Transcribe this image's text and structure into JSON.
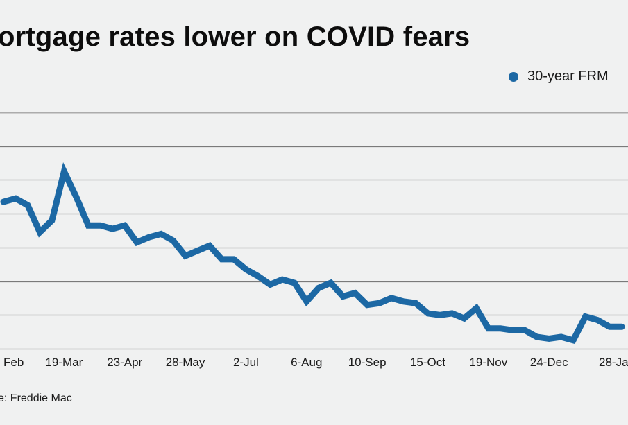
{
  "title": "ortgage rates lower on COVID fears",
  "source": "e: Freddie Mac",
  "colors": {
    "series": "#1c68a4",
    "grid": "#7a7a7a",
    "background": "#f0f1f1"
  },
  "chart_data": {
    "type": "line",
    "title": "ortgage rates lower on COVID fears",
    "xlabel": "",
    "ylabel": "",
    "ylim": [
      2.6,
      4.0
    ],
    "grid": true,
    "legend_position": "top-right",
    "yticks": [
      2.6,
      2.8,
      3.0,
      3.2,
      3.4,
      3.6,
      3.8,
      4.0
    ],
    "xtick_labels": [
      "Feb",
      "19-Mar",
      "23-Apr",
      "28-May",
      "2-Jul",
      "6-Aug",
      "10-Sep",
      "15-Oct",
      "19-Nov",
      "24-Dec",
      "28-Ja"
    ],
    "xtick_indices": [
      0,
      5,
      10,
      15,
      20,
      25,
      30,
      35,
      40,
      45,
      50
    ],
    "x": [
      "13-Feb",
      "20-Feb",
      "27-Feb",
      "5-Mar",
      "12-Mar",
      "19-Mar",
      "26-Mar",
      "2-Apr",
      "9-Apr",
      "16-Apr",
      "23-Apr",
      "30-Apr",
      "7-May",
      "14-May",
      "21-May",
      "28-May",
      "4-Jun",
      "11-Jun",
      "18-Jun",
      "25-Jun",
      "2-Jul",
      "9-Jul",
      "16-Jul",
      "23-Jul",
      "30-Jul",
      "6-Aug",
      "13-Aug",
      "20-Aug",
      "27-Aug",
      "3-Sep",
      "10-Sep",
      "17-Sep",
      "24-Sep",
      "1-Oct",
      "8-Oct",
      "15-Oct",
      "22-Oct",
      "29-Oct",
      "5-Nov",
      "12-Nov",
      "19-Nov",
      "25-Nov",
      "3-Dec",
      "10-Dec",
      "17-Dec",
      "24-Dec",
      "30-Dec",
      "7-Jan",
      "14-Jan",
      "21-Jan",
      "28-Jan",
      "4-Feb"
    ],
    "series": [
      {
        "name": "30-year FRM",
        "values": [
          3.47,
          3.49,
          3.45,
          3.29,
          3.36,
          3.65,
          3.5,
          3.33,
          3.33,
          3.31,
          3.33,
          3.23,
          3.26,
          3.28,
          3.24,
          3.15,
          3.18,
          3.21,
          3.13,
          3.13,
          3.07,
          3.03,
          2.98,
          3.01,
          2.99,
          2.88,
          2.96,
          2.99,
          2.91,
          2.93,
          2.86,
          2.87,
          2.9,
          2.88,
          2.87,
          2.81,
          2.8,
          2.81,
          2.78,
          2.84,
          2.72,
          2.72,
          2.71,
          2.71,
          2.67,
          2.66,
          2.67,
          2.65,
          2.79,
          2.77,
          2.73,
          2.73
        ]
      }
    ]
  }
}
